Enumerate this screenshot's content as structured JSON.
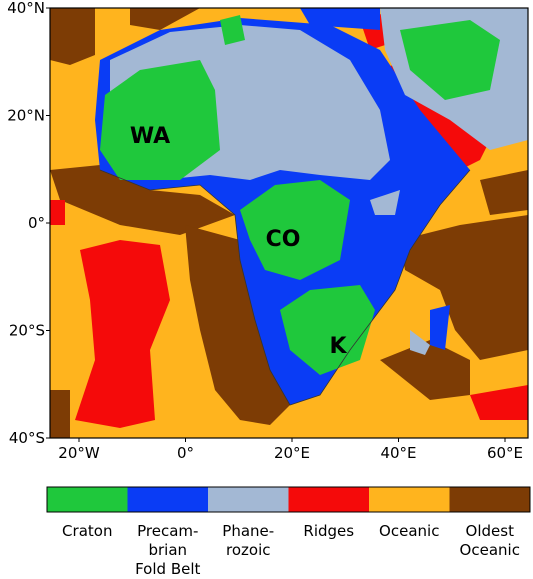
{
  "map": {
    "lon_ticks": [
      "20°W",
      "0°",
      "20°E",
      "40°E",
      "60°E"
    ],
    "lat_ticks": [
      "40°N",
      "20°N",
      "0°",
      "20°S",
      "40°S"
    ],
    "regions": [
      {
        "label": "WA",
        "color": "#1fc83c"
      },
      {
        "label": "CO",
        "color": "#1fc83c"
      },
      {
        "label": "K",
        "color": "#1fc83c"
      }
    ],
    "legend": [
      {
        "lines": [
          "Craton"
        ],
        "color": "#1fc83c"
      },
      {
        "lines": [
          "Precam-",
          "brian",
          "Fold Belt"
        ],
        "color": "#0a3cf5"
      },
      {
        "lines": [
          "Phane-",
          "rozoic"
        ],
        "color": "#a3b8d4"
      },
      {
        "lines": [
          "Ridges"
        ],
        "color": "#f50a0a"
      },
      {
        "lines": [
          "Oceanic"
        ],
        "color": "#ffb41e"
      },
      {
        "lines": [
          "Oldest",
          "Oceanic"
        ],
        "color": "#7d3c05"
      }
    ]
  }
}
